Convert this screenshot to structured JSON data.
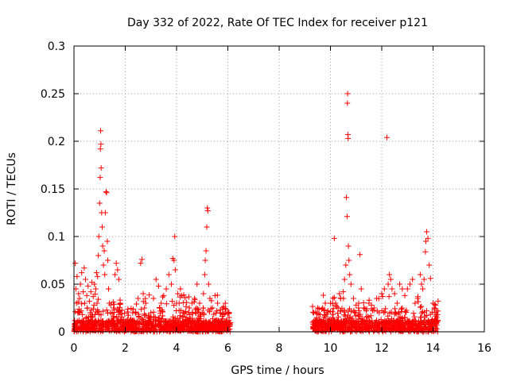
{
  "chart_data": {
    "type": "scatter",
    "title": "Day 332 of 2022, Rate Of TEC Index for receiver p121",
    "xlabel": "GPS time / hours",
    "ylabel": "ROTI / TECUs",
    "xlim": [
      0,
      16
    ],
    "ylim": [
      0,
      0.3
    ],
    "x_ticks": [
      "0",
      "2",
      "4",
      "6",
      "8",
      "10",
      "12",
      "14",
      "16"
    ],
    "y_ticks": [
      "0",
      "0.05",
      "0.1",
      "0.15",
      "0.2",
      "0.25",
      "0.3"
    ],
    "grid": true,
    "marker": "+",
    "color": "#ff0000",
    "series": [
      {
        "points": [
          [
            0.05,
            0.072
          ],
          [
            0.08,
            0.045
          ],
          [
            0.1,
            0.03
          ],
          [
            0.12,
            0.058
          ],
          [
            0.15,
            0.02
          ],
          [
            0.18,
            0.04
          ],
          [
            0.2,
            0.012
          ],
          [
            0.22,
            0.035
          ],
          [
            0.25,
            0.05
          ],
          [
            0.28,
            0.022
          ],
          [
            0.3,
            0.062
          ],
          [
            0.33,
            0.018
          ],
          [
            0.36,
            0.042
          ],
          [
            0.4,
            0.067
          ],
          [
            0.42,
            0.03
          ],
          [
            0.45,
            0.055
          ],
          [
            0.48,
            0.015
          ],
          [
            0.5,
            0.038
          ],
          [
            0.52,
            0.025
          ],
          [
            0.55,
            0.048
          ],
          [
            0.58,
            0.012
          ],
          [
            0.6,
            0.032
          ],
          [
            0.63,
            0.02
          ],
          [
            0.66,
            0.042
          ],
          [
            0.7,
            0.052
          ],
          [
            0.72,
            0.015
          ],
          [
            0.75,
            0.037
          ],
          [
            0.78,
            0.028
          ],
          [
            0.8,
            0.05
          ],
          [
            0.82,
            0.018
          ],
          [
            0.85,
            0.045
          ],
          [
            0.88,
            0.062
          ],
          [
            0.9,
            0.03
          ],
          [
            0.92,
            0.058
          ],
          [
            0.95,
            0.08
          ],
          [
            0.97,
            0.1
          ],
          [
            1.0,
            0.135
          ],
          [
            1.02,
            0.162
          ],
          [
            1.03,
            0.192
          ],
          [
            1.04,
            0.211
          ],
          [
            1.05,
            0.197
          ],
          [
            1.06,
            0.172
          ],
          [
            1.08,
            0.125
          ],
          [
            1.1,
            0.11
          ],
          [
            1.12,
            0.09
          ],
          [
            1.15,
            0.07
          ],
          [
            1.18,
            0.085
          ],
          [
            1.2,
            0.06
          ],
          [
            1.22,
            0.125
          ],
          [
            1.25,
            0.147
          ],
          [
            1.27,
            0.146
          ],
          [
            1.3,
            0.095
          ],
          [
            1.32,
            0.075
          ],
          [
            1.35,
            0.045
          ],
          [
            1.38,
            0.03
          ],
          [
            1.42,
            0.02
          ],
          [
            1.45,
            0.012
          ],
          [
            1.5,
            0.008
          ],
          [
            1.55,
            0.015
          ],
          [
            1.6,
            0.06
          ],
          [
            1.65,
            0.072
          ],
          [
            1.7,
            0.065
          ],
          [
            1.75,
            0.055
          ],
          [
            1.8,
            0.03
          ],
          [
            1.85,
            0.012
          ],
          [
            1.9,
            0.006
          ],
          [
            1.95,
            0.004
          ],
          [
            2.0,
            0.005
          ],
          [
            2.1,
            0.003
          ],
          [
            2.2,
            0.006
          ],
          [
            2.3,
            0.01
          ],
          [
            2.4,
            0.02
          ],
          [
            2.5,
            0.035
          ],
          [
            2.6,
            0.072
          ],
          [
            2.65,
            0.076
          ],
          [
            2.7,
            0.04
          ],
          [
            2.75,
            0.025
          ],
          [
            2.8,
            0.03
          ],
          [
            2.9,
            0.015
          ],
          [
            3.0,
            0.02
          ],
          [
            3.1,
            0.035
          ],
          [
            3.2,
            0.055
          ],
          [
            3.3,
            0.048
          ],
          [
            3.4,
            0.03
          ],
          [
            3.5,
            0.038
          ],
          [
            3.6,
            0.045
          ],
          [
            3.7,
            0.06
          ],
          [
            3.8,
            0.05
          ],
          [
            3.85,
            0.077
          ],
          [
            3.9,
            0.075
          ],
          [
            3.93,
            0.1
          ],
          [
            3.95,
            0.065
          ],
          [
            4.0,
            0.03
          ],
          [
            4.05,
            0.04
          ],
          [
            4.1,
            0.03
          ],
          [
            4.15,
            0.045
          ],
          [
            4.2,
            0.038
          ],
          [
            4.3,
            0.02
          ],
          [
            4.4,
            0.015
          ],
          [
            4.5,
            0.025
          ],
          [
            4.6,
            0.03
          ],
          [
            4.7,
            0.035
          ],
          [
            4.8,
            0.05
          ],
          [
            4.9,
            0.03
          ],
          [
            5.0,
            0.02
          ],
          [
            5.05,
            0.04
          ],
          [
            5.1,
            0.06
          ],
          [
            5.12,
            0.075
          ],
          [
            5.15,
            0.085
          ],
          [
            5.18,
            0.11
          ],
          [
            5.2,
            0.13
          ],
          [
            5.22,
            0.127
          ],
          [
            5.25,
            0.05
          ],
          [
            5.3,
            0.035
          ],
          [
            5.4,
            0.025
          ],
          [
            5.5,
            0.038
          ],
          [
            5.6,
            0.03
          ],
          [
            5.7,
            0.02
          ],
          [
            5.8,
            0.025
          ],
          [
            5.9,
            0.03
          ],
          [
            6.0,
            0.02
          ],
          [
            6.05,
            0.015
          ],
          [
            9.35,
            0.02
          ],
          [
            9.4,
            0.012
          ],
          [
            9.5,
            0.025
          ],
          [
            9.6,
            0.018
          ],
          [
            9.7,
            0.025
          ],
          [
            9.8,
            0.03
          ],
          [
            9.9,
            0.022
          ],
          [
            10.0,
            0.03
          ],
          [
            10.1,
            0.035
          ],
          [
            10.15,
            0.098
          ],
          [
            10.2,
            0.03
          ],
          [
            10.3,
            0.025
          ],
          [
            10.35,
            0.04
          ],
          [
            10.4,
            0.035
          ],
          [
            10.5,
            0.042
          ],
          [
            10.55,
            0.055
          ],
          [
            10.6,
            0.07
          ],
          [
            10.62,
            0.141
          ],
          [
            10.65,
            0.121
          ],
          [
            10.66,
            0.24
          ],
          [
            10.67,
            0.25
          ],
          [
            10.68,
            0.207
          ],
          [
            10.69,
            0.203
          ],
          [
            10.7,
            0.09
          ],
          [
            10.72,
            0.075
          ],
          [
            10.75,
            0.06
          ],
          [
            10.8,
            0.05
          ],
          [
            10.9,
            0.035
          ],
          [
            11.0,
            0.028
          ],
          [
            11.1,
            0.03
          ],
          [
            11.15,
            0.081
          ],
          [
            11.2,
            0.045
          ],
          [
            11.3,
            0.025
          ],
          [
            11.4,
            0.022
          ],
          [
            11.5,
            0.03
          ],
          [
            11.6,
            0.028
          ],
          [
            11.7,
            0.025
          ],
          [
            11.8,
            0.035
          ],
          [
            11.9,
            0.02
          ],
          [
            12.0,
            0.04
          ],
          [
            12.1,
            0.045
          ],
          [
            12.2,
            0.204
          ],
          [
            12.25,
            0.05
          ],
          [
            12.3,
            0.06
          ],
          [
            12.35,
            0.055
          ],
          [
            12.4,
            0.045
          ],
          [
            12.5,
            0.04
          ],
          [
            12.6,
            0.03
          ],
          [
            12.7,
            0.05
          ],
          [
            12.8,
            0.045
          ],
          [
            12.9,
            0.038
          ],
          [
            13.0,
            0.045
          ],
          [
            13.1,
            0.05
          ],
          [
            13.2,
            0.055
          ],
          [
            13.3,
            0.03
          ],
          [
            13.4,
            0.035
          ],
          [
            13.5,
            0.06
          ],
          [
            13.55,
            0.05
          ],
          [
            13.6,
            0.045
          ],
          [
            13.65,
            0.055
          ],
          [
            13.7,
            0.084
          ],
          [
            13.72,
            0.095
          ],
          [
            13.75,
            0.105
          ],
          [
            13.8,
            0.098
          ],
          [
            13.85,
            0.07
          ],
          [
            13.9,
            0.056
          ],
          [
            14.0,
            0.03
          ],
          [
            14.05,
            0.025
          ],
          [
            14.1,
            0.028
          ],
          [
            14.15,
            0.015
          ]
        ]
      }
    ]
  }
}
